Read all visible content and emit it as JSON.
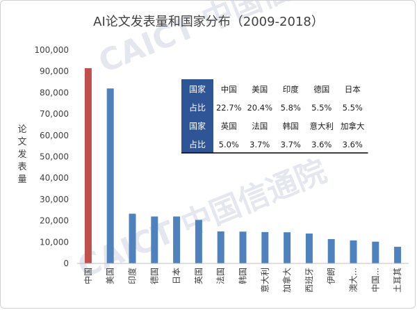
{
  "chart_data": {
    "type": "bar",
    "title": "AI论文发表量和国家分布（2009-2018）",
    "ylabel": "论文发表量",
    "xlabel": "",
    "ylim": [
      0,
      100000
    ],
    "yticks": [
      "0",
      "10,000",
      "20,000",
      "30,000",
      "40,000",
      "50,000",
      "60,000",
      "70,000",
      "80,000",
      "90,000",
      "100,000"
    ],
    "categories": [
      "中国",
      "美国",
      "印度",
      "德国",
      "日本",
      "英国",
      "法国",
      "韩国",
      "意大利",
      "加拿大",
      "西班牙",
      "伊朗",
      "澳大...",
      "中国...",
      "土耳其"
    ],
    "values": [
      91500,
      82000,
      23300,
      22000,
      22000,
      20400,
      15000,
      14900,
      14700,
      14600,
      14000,
      11400,
      10800,
      10200,
      7800
    ],
    "highlight_color": "#c0504d",
    "bar_color": "#4f81bd",
    "grid": false,
    "legend": "none"
  },
  "share_table": {
    "row_header_country": "国家",
    "row_header_share": "占比",
    "top_countries": [
      "中国",
      "美国",
      "印度",
      "德国",
      "日本"
    ],
    "top_shares": [
      "22.7%",
      "20.4%",
      "5.8%",
      "5.5%",
      "5.5%"
    ],
    "bottom_countries": [
      "英国",
      "法国",
      "韩国",
      "意大利",
      "加拿大"
    ],
    "bottom_shares": [
      "5.0%",
      "3.7%",
      "3.7%",
      "3.6%",
      "3.6%"
    ],
    "header_bg": "#2f5597"
  },
  "watermark": "CAICT 中国信通院"
}
